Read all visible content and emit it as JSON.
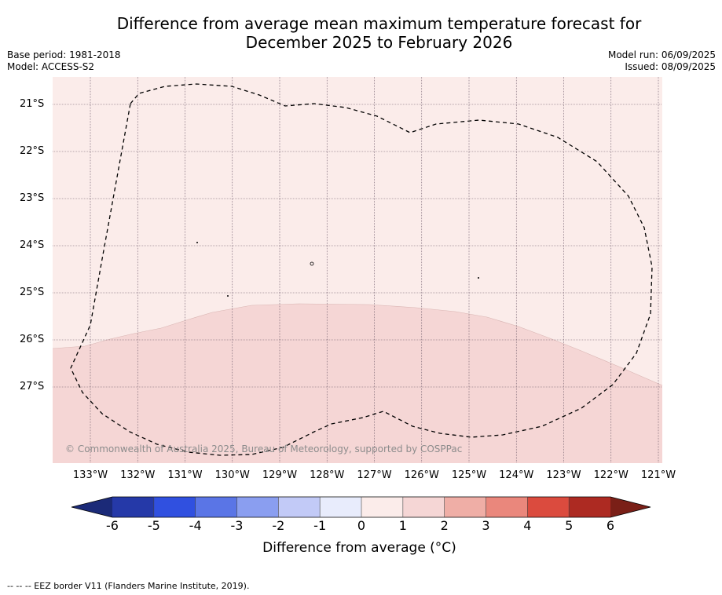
{
  "title": {
    "line1": "Difference from average mean maximum temperature forecast for",
    "line2": "December 2025 to February 2026"
  },
  "meta": {
    "base_period": "Base period: 1981-2018",
    "model": "Model: ACCESS-S2",
    "model_run": "Model run: 06/09/2025",
    "issued": "Issued: 08/09/2025"
  },
  "map": {
    "lon_range": [
      -133.8,
      -120.9
    ],
    "lat_range": [
      -28.6,
      -20.4
    ],
    "lat_ticks": [
      "21°S",
      "22°S",
      "23°S",
      "24°S",
      "25°S",
      "26°S",
      "27°S"
    ],
    "lon_ticks": [
      "133°W",
      "132°W",
      "131°W",
      "130°W",
      "129°W",
      "128°W",
      "127°W",
      "126°W",
      "125°W",
      "124°W",
      "123°W",
      "122°W",
      "121°W"
    ],
    "anomaly_regions": [
      {
        "category": "0 to 1",
        "color": "#fbecea"
      },
      {
        "category": "1 to 2",
        "color": "#f5d6d5"
      }
    ],
    "credit": "© Commonwealth of Australia 2025, Bureau of Meteorology, supported by COSPPac"
  },
  "colorbar": {
    "ticks": [
      "-6",
      "-5",
      "-4",
      "-3",
      "-2",
      "-1",
      "0",
      "1",
      "2",
      "3",
      "4",
      "5",
      "6"
    ],
    "colors": [
      "#2539a8",
      "#3050e0",
      "#5a75e6",
      "#8a9ef0",
      "#c2caf7",
      "#e8ecfc",
      "#fbecea",
      "#f5d6d5",
      "#efaea6",
      "#ea877c",
      "#db4b3e",
      "#ad2a22"
    ],
    "under_color": "#1b2a78",
    "over_color": "#7a1f17",
    "label": "Difference from average (°C)"
  },
  "legend": {
    "text": "--  --  -- EEZ border V11 (Flanders Marine Institute, 2019)."
  }
}
